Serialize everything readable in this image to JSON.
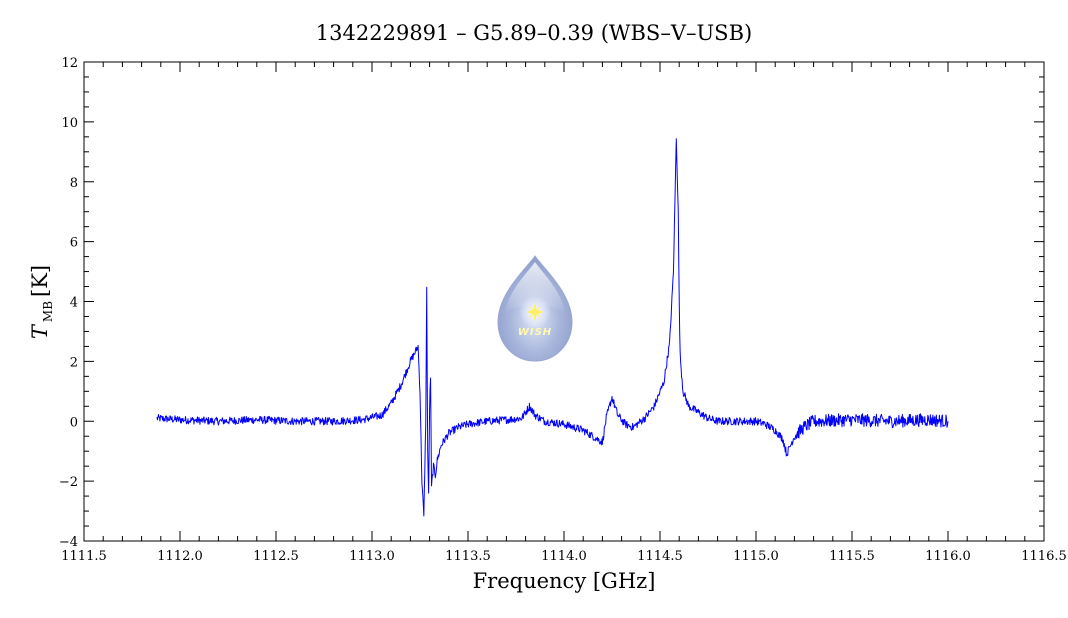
{
  "chart_data": {
    "type": "line",
    "title": "1342229891 – G5.89–0.39 (WBS–V–USB)",
    "xlabel": "Frequency [GHz]",
    "ylabel_main": "T",
    "ylabel_sub": "MB",
    "ylabel_unit": "[K]",
    "xlim": [
      1111.5,
      1116.5
    ],
    "ylim": [
      -4,
      12
    ],
    "xticks": [
      1111.5,
      1112.0,
      1112.5,
      1113.0,
      1113.5,
      1114.0,
      1114.5,
      1115.0,
      1115.5,
      1116.0,
      1116.5
    ],
    "yticks": [
      -4,
      -2,
      0,
      2,
      4,
      6,
      8,
      10,
      12
    ],
    "grid": false,
    "series": [
      {
        "color": "#0000ff",
        "x": [
          1111.88,
          1112.0,
          1112.2,
          1112.4,
          1112.6,
          1112.8,
          1112.95,
          1113.05,
          1113.1,
          1113.15,
          1113.2,
          1113.24,
          1113.25,
          1113.26,
          1113.27,
          1113.28,
          1113.285,
          1113.29,
          1113.295,
          1113.3,
          1113.305,
          1113.31,
          1113.32,
          1113.33,
          1113.34,
          1113.36,
          1113.4,
          1113.45,
          1113.5,
          1113.6,
          1113.7,
          1113.78,
          1113.82,
          1113.85,
          1113.9,
          1114.0,
          1114.1,
          1114.15,
          1114.2,
          1114.22,
          1114.25,
          1114.28,
          1114.32,
          1114.36,
          1114.42,
          1114.47,
          1114.52,
          1114.55,
          1114.57,
          1114.585,
          1114.595,
          1114.6,
          1114.605,
          1114.62,
          1114.65,
          1114.7,
          1114.75,
          1114.8,
          1114.9,
          1115.0,
          1115.05,
          1115.1,
          1115.14,
          1115.16,
          1115.2,
          1115.25,
          1115.3,
          1115.5,
          1115.7,
          1115.9,
          1116.0
        ],
        "y": [
          0.1,
          0.05,
          0.0,
          0.05,
          0.0,
          0.0,
          0.05,
          0.2,
          0.6,
          1.2,
          2.0,
          2.5,
          1.0,
          -2.0,
          -3.2,
          0.0,
          4.4,
          -1.0,
          -2.5,
          0.5,
          1.5,
          -2.2,
          -1.5,
          -1.8,
          -1.3,
          -0.8,
          -0.4,
          -0.2,
          -0.1,
          0.0,
          0.05,
          0.1,
          0.5,
          0.2,
          0.0,
          -0.1,
          -0.3,
          -0.5,
          -0.7,
          0.1,
          0.8,
          0.2,
          -0.1,
          -0.2,
          0.1,
          0.5,
          1.3,
          2.6,
          5.0,
          9.5,
          7.0,
          4.0,
          2.2,
          1.0,
          0.5,
          0.3,
          0.1,
          0.0,
          0.0,
          0.0,
          -0.1,
          -0.3,
          -0.6,
          -1.1,
          -0.5,
          -0.2,
          0.0,
          0.05,
          0.0,
          0.05,
          0.0
        ]
      }
    ]
  },
  "logo": {
    "text": "WISH"
  }
}
